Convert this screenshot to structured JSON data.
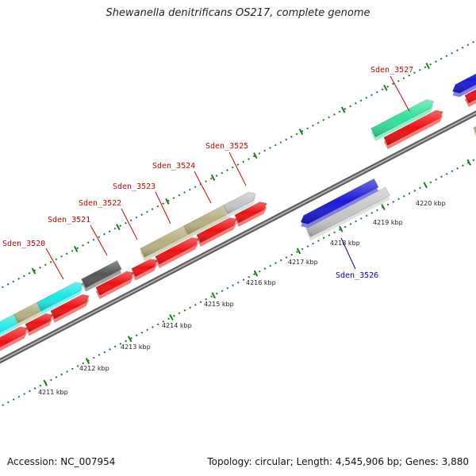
{
  "header": {
    "title": "Shewanella denitrificans OS217, complete genome"
  },
  "footer": {
    "accession": "Accession: NC_007954",
    "topology": "Topology: circular; Length: 4,545,906 bp; Genes: 3,880"
  },
  "colors": {
    "backbone": "#8c8c8c",
    "tick": "#1f7a1f",
    "label_forward": "#cc0000",
    "label_reverse": "#0000cc",
    "cds": "#ee1111",
    "cyan": "#19e8e8",
    "khaki": "#b6b07e",
    "dark_gray": "#555555",
    "light_gray": "#c6c6c6",
    "teal": "#33e09a",
    "blue": "#1a1ad6"
  },
  "scale_labels": [
    "4211 kbp",
    "4212 kbp",
    "4213 kbp",
    "4214 kbp",
    "4215 kbp",
    "4216 kbp",
    "4217 kbp",
    "4218 kbp",
    "4219 kbp",
    "4220 kbp"
  ],
  "gene_labels": [
    {
      "text": "Sden_3520",
      "strand": "forward"
    },
    {
      "text": "Sden_3521",
      "strand": "forward"
    },
    {
      "text": "Sden_3522",
      "strand": "forward"
    },
    {
      "text": "Sden_3523",
      "strand": "forward"
    },
    {
      "text": "Sden_3524",
      "strand": "forward"
    },
    {
      "text": "Sden_3525",
      "strand": "forward"
    },
    {
      "text": "Sden_3527",
      "strand": "forward"
    },
    {
      "text": "Sden_3526",
      "strand": "reverse"
    }
  ]
}
